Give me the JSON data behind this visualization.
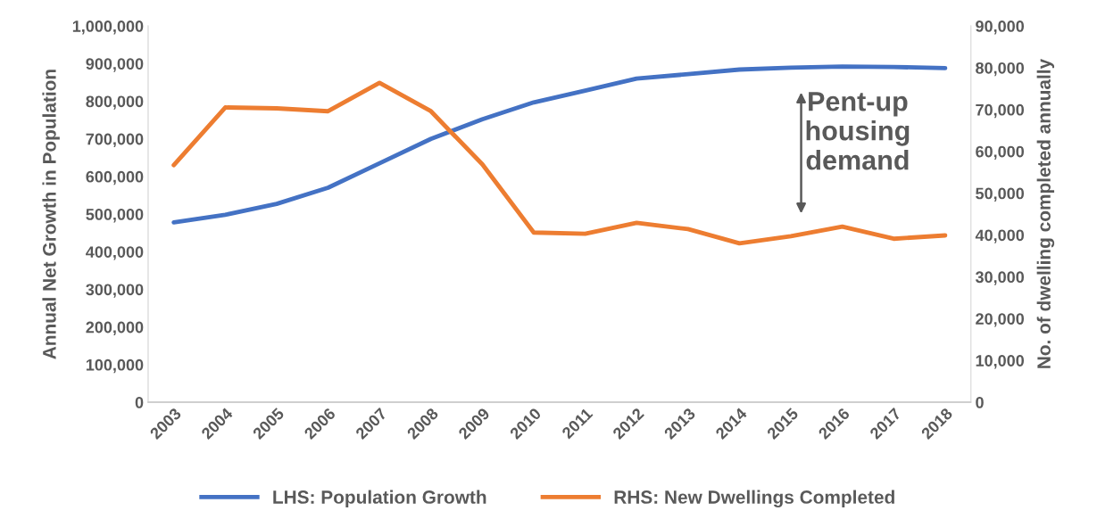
{
  "chart_data": {
    "type": "line",
    "categories": [
      "2003",
      "2004",
      "2005",
      "2006",
      "2007",
      "2008",
      "2009",
      "2010",
      "2011",
      "2012",
      "2013",
      "2014",
      "2015",
      "2016",
      "2017",
      "2018"
    ],
    "ylabel": "Annual Net Growth in Population",
    "y2label": "No. of dwelling completed annually",
    "series": [
      {
        "name": "LHS: Population Growth",
        "color": "#4472c4",
        "values": [
          478000,
          498000,
          527000,
          570000,
          635000,
          700000,
          752000,
          797000,
          828000,
          860000,
          872000,
          884000,
          889000,
          892000,
          891000,
          888000
        ]
      },
      {
        "name": "RHS: New Dwellings Completed",
        "color": "#ed7d31",
        "axis": "y2",
        "values": [
          56700,
          70500,
          70300,
          69600,
          76400,
          69600,
          56900,
          40600,
          40300,
          42900,
          41400,
          38000,
          39700,
          42000,
          39100,
          39900
        ]
      }
    ],
    "ylim": [
      0,
      1000000
    ],
    "yticks": [
      {
        "value": 0,
        "label": "0"
      },
      {
        "value": 100000,
        "label": "100,000"
      },
      {
        "value": 200000,
        "label": "200,000"
      },
      {
        "value": 300000,
        "label": "300,000"
      },
      {
        "value": 400000,
        "label": "400,000"
      },
      {
        "value": 500000,
        "label": "500,000"
      },
      {
        "value": 600000,
        "label": "600,000"
      },
      {
        "value": 700000,
        "label": "700,000"
      },
      {
        "value": 800000,
        "label": "800,000"
      },
      {
        "value": 900000,
        "label": "900,000"
      },
      {
        "value": 1000000,
        "label": "1,000,000"
      }
    ],
    "y2lim": [
      0,
      90000
    ],
    "y2ticks": [
      {
        "value": 0,
        "label": "0"
      },
      {
        "value": 10000,
        "label": "10,000"
      },
      {
        "value": 20000,
        "label": "20,000"
      },
      {
        "value": 30000,
        "label": "30,000"
      },
      {
        "value": 40000,
        "label": "40,000"
      },
      {
        "value": 50000,
        "label": "50,000"
      },
      {
        "value": 60000,
        "label": "60,000"
      },
      {
        "value": 70000,
        "label": "70,000"
      },
      {
        "value": 80000,
        "label": "80,000"
      },
      {
        "value": 90000,
        "label": "90,000"
      }
    ],
    "annotations": [
      "Pent-up\nhousing\ndemand"
    ],
    "grid": false,
    "legend": "bottom",
    "marker": "none",
    "line_style": "solid"
  }
}
